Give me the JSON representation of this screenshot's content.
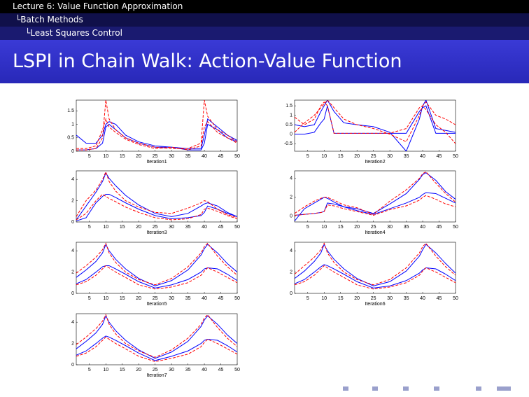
{
  "header": {
    "lecture": "Lecture 6: Value Function Approximation",
    "section": "Batch Methods",
    "subsection": "Least Squares Control"
  },
  "slide_title": "LSPI in Chain Walk: Action-Value Function",
  "chart_data": [
    {
      "type": "line",
      "xlabel": "Iteration1",
      "x": [
        1,
        4,
        7,
        9,
        10,
        11,
        13,
        16,
        20,
        25,
        30,
        35,
        39,
        40,
        41,
        44,
        47,
        50
      ],
      "xlim": [
        1,
        50
      ],
      "xticks": [
        5,
        10,
        15,
        20,
        25,
        30,
        35,
        40,
        45,
        50
      ],
      "ylim": [
        0,
        1.9
      ],
      "yticks": [
        0,
        0.5,
        1,
        1.5
      ],
      "series": [
        {
          "color": "#0000ff",
          "dash": false,
          "values": [
            0.6,
            0.3,
            0.3,
            0.6,
            1.0,
            1.1,
            1.0,
            0.6,
            0.35,
            0.2,
            0.15,
            0.1,
            0.1,
            0.6,
            1.2,
            0.9,
            0.6,
            0.4
          ]
        },
        {
          "color": "#0000ff",
          "dash": false,
          "values": [
            0.05,
            0.05,
            0.1,
            0.3,
            0.9,
            1.0,
            0.8,
            0.5,
            0.3,
            0.15,
            0.15,
            0.05,
            0.05,
            0.3,
            1.0,
            0.8,
            0.5,
            0.35
          ]
        },
        {
          "color": "#ff0000",
          "dash": true,
          "values": [
            0.05,
            0.05,
            0.1,
            0.5,
            1.9,
            1.2,
            0.8,
            0.5,
            0.3,
            0.15,
            0.1,
            0.1,
            0.3,
            1.9,
            1.3,
            0.8,
            0.6,
            0.35
          ]
        },
        {
          "color": "#ff0000",
          "dash": true,
          "values": [
            0.1,
            0.1,
            0.2,
            0.8,
            1.2,
            0.9,
            0.7,
            0.45,
            0.25,
            0.1,
            0.15,
            0.05,
            0.2,
            0.9,
            1.1,
            0.7,
            0.5,
            0.3
          ]
        }
      ]
    },
    {
      "type": "line",
      "xlabel": "Iteration2",
      "x": [
        1,
        4,
        7,
        9,
        10,
        11,
        13,
        16,
        20,
        25,
        30,
        35,
        39,
        40,
        41,
        44,
        47,
        50
      ],
      "xlim": [
        1,
        50
      ],
      "xticks": [
        5,
        10,
        15,
        20,
        25,
        30,
        35,
        40,
        45,
        50
      ],
      "ylim": [
        -0.9,
        1.8
      ],
      "yticks": [
        -0.5,
        0,
        0.5,
        1,
        1.5
      ],
      "series": [
        {
          "color": "#0000ff",
          "dash": false,
          "values": [
            0.5,
            0.4,
            0.5,
            1.2,
            1.5,
            1.8,
            1.2,
            0.6,
            0.5,
            0.4,
            0.1,
            -0.9,
            0.8,
            1.5,
            1.8,
            0.3,
            0.2,
            0.1
          ]
        },
        {
          "color": "#0000ff",
          "dash": false,
          "values": [
            0,
            0,
            0.1,
            0.6,
            0.8,
            1.5,
            0.05,
            0.05,
            0.05,
            0.05,
            0.05,
            0.05,
            1.2,
            1.4,
            1.5,
            0.05,
            0.05,
            0.05
          ]
        },
        {
          "color": "#ff0000",
          "dash": true,
          "values": [
            0.1,
            0.6,
            1.0,
            1.4,
            1.6,
            1.8,
            1.4,
            0.8,
            0.5,
            0.3,
            0,
            -0.4,
            1.0,
            1.5,
            1.7,
            1.0,
            0.8,
            0.5
          ]
        },
        {
          "color": "#ff0000",
          "dash": true,
          "values": [
            0.9,
            0.5,
            0.8,
            1.5,
            1.7,
            1.5,
            0.05,
            0.05,
            0.05,
            0.05,
            0.05,
            0.3,
            1.4,
            1.5,
            1.3,
            0.5,
            0.1,
            -0.5
          ]
        }
      ]
    },
    {
      "type": "line",
      "xlabel": "Iteration3",
      "x": [
        1,
        4,
        7,
        9,
        10,
        11,
        13,
        16,
        20,
        25,
        30,
        35,
        39,
        40,
        41,
        44,
        47,
        50
      ],
      "xlim": [
        1,
        50
      ],
      "xticks": [
        5,
        10,
        15,
        20,
        25,
        30,
        35,
        40,
        45,
        50
      ],
      "ylim": [
        0,
        4.8
      ],
      "yticks": [
        0,
        2,
        4
      ],
      "series": [
        {
          "color": "#0000ff",
          "dash": false,
          "values": [
            0.2,
            1.5,
            2.8,
            3.8,
            4.6,
            4.1,
            3.4,
            2.5,
            1.6,
            0.8,
            0.5,
            0.8,
            1.5,
            1.7,
            1.8,
            1.5,
            0.9,
            0.5
          ]
        },
        {
          "color": "#0000ff",
          "dash": false,
          "values": [
            0.1,
            0.4,
            1.8,
            2.4,
            2.6,
            2.6,
            2.3,
            1.8,
            1.2,
            0.6,
            0.3,
            0.4,
            0.6,
            0.9,
            1.5,
            1.2,
            0.8,
            0.5
          ]
        },
        {
          "color": "#ff0000",
          "dash": true,
          "values": [
            0.5,
            2.0,
            3.0,
            4.0,
            4.7,
            3.8,
            2.9,
            2.0,
            1.4,
            0.9,
            0.8,
            1.3,
            1.8,
            2.0,
            1.9,
            1.2,
            0.7,
            0.4
          ]
        },
        {
          "color": "#ff0000",
          "dash": true,
          "values": [
            0.2,
            0.8,
            2.0,
            2.6,
            2.4,
            2.2,
            1.9,
            1.4,
            0.9,
            0.4,
            0.2,
            0.3,
            0.7,
            1.2,
            1.3,
            1.0,
            0.6,
            0.3
          ]
        }
      ]
    },
    {
      "type": "line",
      "xlabel": "Iteration4",
      "x": [
        1,
        4,
        7,
        9,
        10,
        11,
        13,
        16,
        20,
        25,
        30,
        35,
        39,
        40,
        41,
        44,
        47,
        50
      ],
      "xlim": [
        1,
        50
      ],
      "xticks": [
        5,
        10,
        15,
        20,
        25,
        30,
        35,
        40,
        45,
        50
      ],
      "ylim": [
        -0.6,
        4.8
      ],
      "yticks": [
        0,
        2,
        4
      ],
      "series": [
        {
          "color": "#0000ff",
          "dash": false,
          "values": [
            -0.5,
            0.8,
            1.4,
            1.8,
            2.0,
            1.9,
            1.5,
            1.0,
            0.8,
            0.3,
            1.3,
            2.4,
            3.9,
            4.4,
            4.6,
            3.8,
            2.6,
            1.8
          ]
        },
        {
          "color": "#0000ff",
          "dash": false,
          "values": [
            0.1,
            0.2,
            0.3,
            0.4,
            0.5,
            1.4,
            1.3,
            1.0,
            0.6,
            0.2,
            0.8,
            1.4,
            2.0,
            2.3,
            2.5,
            2.4,
            1.9,
            1.4
          ]
        },
        {
          "color": "#ff0000",
          "dash": true,
          "values": [
            0.3,
            1.0,
            1.6,
            1.9,
            2.0,
            2.0,
            1.7,
            1.2,
            0.9,
            0.2,
            1.6,
            2.8,
            4.0,
            4.5,
            4.7,
            3.5,
            2.4,
            1.5
          ]
        },
        {
          "color": "#ff0000",
          "dash": true,
          "values": [
            0.1,
            0.2,
            0.3,
            0.4,
            0.5,
            1.2,
            1.1,
            0.8,
            0.5,
            0.1,
            0.7,
            1.1,
            1.7,
            2.0,
            2.2,
            1.8,
            1.3,
            1.0
          ]
        }
      ]
    },
    {
      "type": "line",
      "xlabel": "Iteration5",
      "x": [
        1,
        4,
        7,
        9,
        10,
        11,
        13,
        16,
        20,
        25,
        30,
        35,
        39,
        40,
        41,
        44,
        47,
        50
      ],
      "xlim": [
        1,
        50
      ],
      "xticks": [
        5,
        10,
        15,
        20,
        25,
        30,
        35,
        40,
        45,
        50
      ],
      "ylim": [
        0,
        4.8
      ],
      "yticks": [
        0,
        2,
        4
      ],
      "series": [
        {
          "color": "#0000ff",
          "dash": false,
          "values": [
            1.5,
            2.2,
            3.0,
            3.8,
            4.6,
            4.0,
            3.2,
            2.3,
            1.4,
            0.7,
            1.2,
            2.2,
            3.6,
            4.2,
            4.6,
            3.8,
            2.8,
            2.0
          ]
        },
        {
          "color": "#0000ff",
          "dash": false,
          "values": [
            0.9,
            1.3,
            2.0,
            2.5,
            2.6,
            2.6,
            2.3,
            1.8,
            1.1,
            0.5,
            0.8,
            1.3,
            2.0,
            2.3,
            2.4,
            2.3,
            1.8,
            1.2
          ]
        },
        {
          "color": "#ff0000",
          "dash": true,
          "values": [
            1.9,
            2.6,
            3.4,
            4.1,
            4.7,
            3.8,
            2.9,
            2.0,
            1.3,
            0.8,
            1.4,
            2.5,
            3.8,
            4.4,
            4.7,
            3.5,
            2.5,
            1.7
          ]
        },
        {
          "color": "#ff0000",
          "dash": true,
          "values": [
            0.8,
            1.1,
            1.7,
            2.3,
            2.6,
            2.4,
            2.0,
            1.5,
            0.8,
            0.4,
            0.6,
            1.0,
            1.7,
            2.1,
            2.4,
            2.0,
            1.5,
            1.0
          ]
        }
      ]
    },
    {
      "type": "line",
      "xlabel": "Iteration6",
      "x": [
        1,
        4,
        7,
        9,
        10,
        11,
        13,
        16,
        20,
        25,
        30,
        35,
        39,
        40,
        41,
        44,
        47,
        50
      ],
      "xlim": [
        1,
        50
      ],
      "xticks": [
        5,
        10,
        15,
        20,
        25,
        30,
        35,
        40,
        45,
        50
      ],
      "ylim": [
        0,
        4.8
      ],
      "yticks": [
        0,
        2,
        4
      ],
      "series": [
        {
          "color": "#0000ff",
          "dash": false,
          "values": [
            1.4,
            2.1,
            3.0,
            3.8,
            4.6,
            4.0,
            3.2,
            2.3,
            1.4,
            0.7,
            1.1,
            2.1,
            3.5,
            4.1,
            4.6,
            3.8,
            2.8,
            1.9
          ]
        },
        {
          "color": "#0000ff",
          "dash": false,
          "values": [
            0.9,
            1.3,
            2.0,
            2.5,
            2.7,
            2.6,
            2.3,
            1.8,
            1.1,
            0.5,
            0.7,
            1.2,
            1.9,
            2.2,
            2.4,
            2.3,
            1.8,
            1.2
          ]
        },
        {
          "color": "#ff0000",
          "dash": true,
          "values": [
            1.8,
            2.6,
            3.4,
            4.1,
            4.7,
            3.8,
            2.9,
            2.0,
            1.3,
            0.8,
            1.3,
            2.4,
            3.8,
            4.4,
            4.7,
            3.5,
            2.5,
            1.7
          ]
        },
        {
          "color": "#ff0000",
          "dash": true,
          "values": [
            0.8,
            1.1,
            1.7,
            2.3,
            2.6,
            2.4,
            2.0,
            1.5,
            0.8,
            0.4,
            0.6,
            1.0,
            1.7,
            2.1,
            2.4,
            2.0,
            1.5,
            1.0
          ]
        }
      ]
    },
    {
      "type": "line",
      "xlabel": "Iteration7",
      "x": [
        1,
        4,
        7,
        9,
        10,
        11,
        13,
        16,
        20,
        25,
        30,
        35,
        39,
        40,
        41,
        44,
        47,
        50
      ],
      "xlim": [
        1,
        50
      ],
      "xticks": [
        5,
        10,
        15,
        20,
        25,
        30,
        35,
        40,
        45,
        50
      ],
      "ylim": [
        0,
        4.8
      ],
      "yticks": [
        0,
        2,
        4
      ],
      "series": [
        {
          "color": "#0000ff",
          "dash": false,
          "values": [
            1.5,
            2.2,
            3.0,
            3.8,
            4.6,
            4.0,
            3.2,
            2.3,
            1.4,
            0.6,
            1.2,
            2.2,
            3.6,
            4.2,
            4.6,
            3.8,
            2.8,
            2.0
          ]
        },
        {
          "color": "#0000ff",
          "dash": false,
          "values": [
            0.9,
            1.3,
            2.0,
            2.5,
            2.7,
            2.6,
            2.3,
            1.8,
            1.1,
            0.4,
            0.8,
            1.3,
            2.0,
            2.3,
            2.4,
            2.3,
            1.8,
            1.2
          ]
        },
        {
          "color": "#ff0000",
          "dash": true,
          "values": [
            1.9,
            2.6,
            3.4,
            4.1,
            4.7,
            3.8,
            2.9,
            2.0,
            1.3,
            0.7,
            1.4,
            2.5,
            3.8,
            4.4,
            4.7,
            3.5,
            2.5,
            1.7
          ]
        },
        {
          "color": "#ff0000",
          "dash": true,
          "values": [
            0.8,
            1.1,
            1.7,
            2.3,
            2.6,
            2.4,
            2.0,
            1.5,
            0.8,
            0.3,
            0.6,
            1.0,
            1.7,
            2.1,
            2.4,
            2.0,
            1.5,
            1.0
          ]
        }
      ]
    }
  ]
}
